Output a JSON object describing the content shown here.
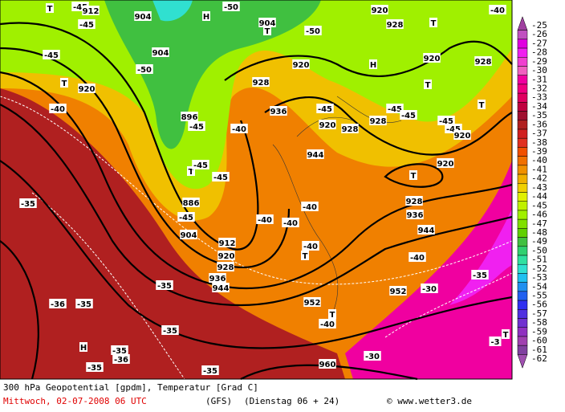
{
  "map": {
    "labels": [
      "T",
      "-45",
      "912",
      "904",
      "H",
      "-50",
      "904",
      "T",
      "-50",
      "920",
      "T",
      "-40",
      "928",
      "-45",
      "-45",
      "904",
      "-50",
      "920",
      "H",
      "920",
      "928",
      "T",
      "920",
      "928",
      "T",
      "-40",
      "936",
      "-45",
      "-45",
      "T",
      "896",
      "-45",
      "-40",
      "920",
      "928",
      "928",
      "-45",
      "-45",
      "-45",
      "920",
      "944",
      "T",
      "-45",
      "-45",
      "920",
      "T",
      "886",
      "-40",
      "928",
      "936",
      "-35",
      "-45",
      "-40",
      "-40",
      "904",
      "912",
      "944",
      "-40",
      "T",
      "920",
      "-40",
      "928",
      "936",
      "-35",
      "944",
      "952",
      "-30",
      "-35",
      "-36",
      "-35",
      "952",
      "T",
      "-40",
      "-35",
      "-3",
      "T",
      "H",
      "-35",
      "-36",
      "-35",
      "-30",
      "960",
      "-35"
    ]
  },
  "legend": {
    "labels": [
      -25,
      -26,
      -27,
      -28,
      -29,
      -30,
      -31,
      -32,
      -33,
      -34,
      -35,
      -36,
      -37,
      -38,
      -39,
      -40,
      -41,
      -42,
      -43,
      -44,
      -45,
      -46,
      -47,
      -48,
      -49,
      -50,
      -51,
      -52,
      -53,
      -54,
      -55,
      -56,
      -57,
      -58,
      -59,
      -60,
      -61,
      -62
    ],
    "colors": [
      "#a040a0",
      "#c050c0",
      "#e000e0",
      "#f020f0",
      "#f040d0",
      "#f060c0",
      "#f000a0",
      "#f00080",
      "#e00060",
      "#c00040",
      "#a01030",
      "#b02020",
      "#d02020",
      "#e03020",
      "#f05000",
      "#f07000",
      "#f09000",
      "#f0b000",
      "#f0d000",
      "#e0f000",
      "#c0f000",
      "#a0f000",
      "#80e000",
      "#60d000",
      "#40c040",
      "#30d070",
      "#30e0a0",
      "#30e0d0",
      "#20c0f0",
      "#2090f0",
      "#2060f0",
      "#3030f0",
      "#5030e0",
      "#7030d0",
      "#9030c0",
      "#a040b0",
      "#8040a0",
      "#a050b0"
    ]
  },
  "caption": {
    "title": "300 hPa Geopotential [gpdm], Temperatur [Grad C]",
    "date": "Mittwoch, 02-07-2008  06 UTC",
    "model": "(GFS)",
    "run": "(Dienstag 06 + 24)",
    "credit": "© www.wetter3.de"
  }
}
